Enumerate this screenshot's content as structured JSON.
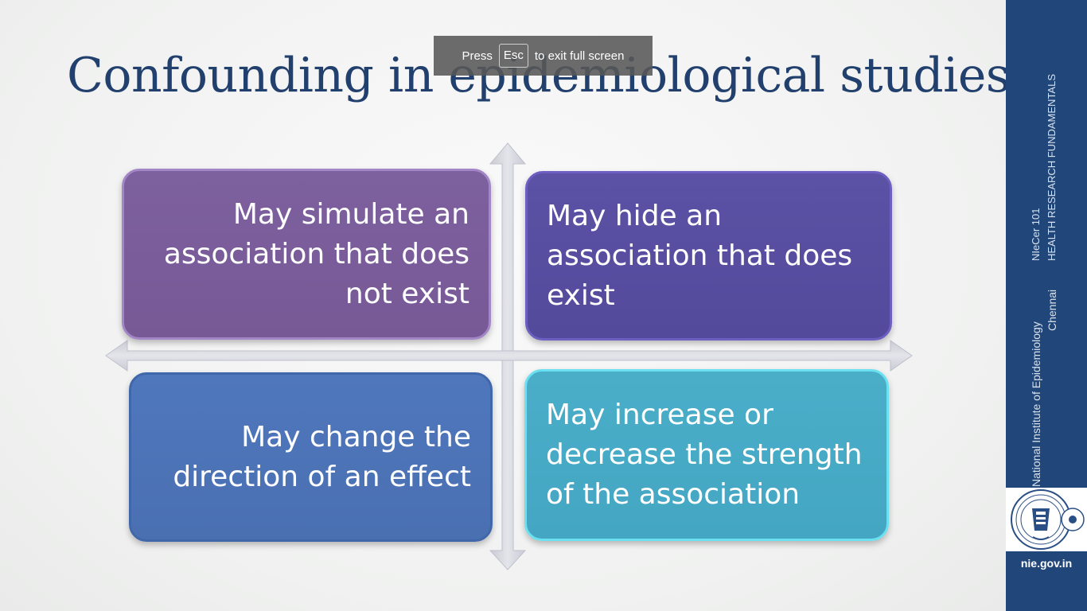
{
  "slide": {
    "title": "Confounding in epidemiological studies",
    "quadrants": {
      "top_left": [
        "May simulate an",
        "association  that does",
        "not exist"
      ],
      "top_right": [
        "May hide an",
        "association that does",
        "exist"
      ],
      "bottom_left": [
        "May change the",
        "direction of an effect"
      ],
      "bottom_right": [
        "May increase or",
        "decrease the strength",
        "of the association"
      ]
    }
  },
  "fullscreen_banner": {
    "press": "Press",
    "key": "Esc",
    "suffix": "to exit full screen"
  },
  "sidebar": {
    "course_code": "NIeCer 101",
    "course_name": "HEALTH RESEARCH FUNDAMENTALS",
    "institute": "National Institute of Epidemiology",
    "city": "Chennai",
    "url": "nie.gov.in",
    "logo_ring_text": "भारतीय आयुर्विज्ञान अनुसंधान परिषद",
    "logo_inner_text": "INDIAN COUNCIL OF MEDICAL RESEARCH",
    "logo_bottom_text": "NEW DELHI",
    "logo_bottom_hindi": "नई दिल्ली"
  },
  "colors": {
    "title": "#22406d",
    "sidebar": "#21467a",
    "quadrant_top_left": "#7a5c9a",
    "quadrant_top_right": "#574ea1",
    "quadrant_bottom_left": "#4c74b7",
    "quadrant_bottom_right": "#46aac5"
  }
}
